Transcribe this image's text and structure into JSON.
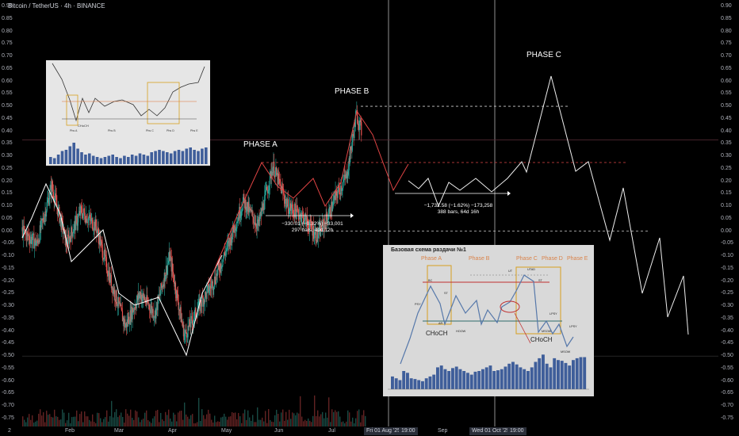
{
  "header": {
    "title": "Bitcoin / TetherUS · 4h · BINANCE"
  },
  "colors": {
    "up": "#26a69a",
    "down": "#ef5350",
    "accent_red": "#e04444",
    "path": "#ffffff",
    "inset_bar": "#3f5e9a"
  },
  "chart_data": {
    "type": "line",
    "title": "Bitcoin / TetherUS · 4h · BINANCE",
    "y_ticks": [
      "0.90",
      "0.85",
      "0.80",
      "0.75",
      "0.70",
      "0.65",
      "0.60",
      "0.55",
      "0.50",
      "0.45",
      "0.40",
      "0.35",
      "0.30",
      "0.25",
      "0.20",
      "0.15",
      "0.10",
      "0.05",
      "0.00",
      "-0.05",
      "-0.10",
      "-0.15",
      "-0.20",
      "-0.25",
      "-0.30",
      "-0.35",
      "-0.40",
      "-0.45",
      "-0.50",
      "-0.55",
      "-0.60",
      "-0.65",
      "-0.70",
      "-0.75"
    ],
    "ylim": [
      -0.78,
      0.91
    ],
    "x_ticks": [
      "2",
      "Feb",
      "Mar",
      "Apr",
      "May",
      "Jun",
      "Jul",
      "Fri 01 Aug '25",
      "19:00",
      "Sep",
      "Wed 01 Oct '25",
      "19:00"
    ],
    "price_path": {
      "x_month": [
        0.0,
        0.3,
        0.6,
        0.9,
        1.2,
        1.5,
        1.8,
        2.1,
        2.4,
        2.7,
        3.0,
        3.3,
        3.6,
        3.9,
        4.2,
        4.5,
        4.8,
        5.1,
        5.4,
        5.7,
        6.0,
        6.2,
        6.4,
        6.6,
        6.8,
        6.9
      ],
      "y": [
        0.0,
        -0.05,
        0.18,
        -0.05,
        0.08,
        0.02,
        -0.2,
        -0.38,
        -0.25,
        -0.33,
        -0.1,
        -0.42,
        -0.3,
        -0.2,
        -0.05,
        0.12,
        0.02,
        0.26,
        0.1,
        0.06,
        -0.02,
        0.05,
        0.15,
        0.22,
        0.47,
        0.4
      ]
    },
    "projection_path": {
      "x_month": [
        7.0,
        7.2,
        7.4,
        7.6,
        7.8,
        8.0,
        8.2,
        8.4,
        8.6,
        8.8,
        9.0,
        9.2,
        9.4,
        9.6,
        9.8,
        10.0,
        10.2,
        10.4,
        10.6,
        10.8,
        11.0,
        11.2,
        11.4
      ],
      "y": [
        0.2,
        0.22,
        0.18,
        0.2,
        0.17,
        0.22,
        0.2,
        0.17,
        0.28,
        0.24,
        0.62,
        0.5,
        0.25,
        0.28,
        0.0,
        0.17,
        -0.28,
        -0.02,
        -0.25,
        -0.15,
        -0.35,
        -0.18,
        -0.4
      ]
    },
    "levels": [
      {
        "name": "phase_b_top",
        "y": 0.5
      },
      {
        "name": "phase_a_top",
        "y": 0.275
      },
      {
        "name": "mid",
        "y": 0.0
      },
      {
        "name": "phase_a_upper",
        "y": 0.365
      },
      {
        "name": "phase_a_lower",
        "y": -0.5
      }
    ]
  },
  "annotations": {
    "phase_a": "PHASE A",
    "phase_b": "PHASE B",
    "phase_c": "PHASE C",
    "measure1_line1": "−330.01 (−0.32%) −33,001",
    "measure1_line2": "297 bars, 49d 12h",
    "measure2_line1": "−1,732.58 (−1.62%) −173,258",
    "measure2_line2": "388 bars, 64d 16h"
  },
  "inset_right": {
    "title": "Базовая схема раздачи №1",
    "phases": [
      "Phase A",
      "Phase B",
      "Phase C",
      "Phase D",
      "Phase E"
    ],
    "choch_left": "CHoCH",
    "choch_right": "CHoCH",
    "labels": {
      "psy": "PSY",
      "bc": "BC",
      "ar": "AR",
      "st": "ST",
      "hoow": "HOOW",
      "ut": "UT",
      "utad": "UTAD",
      "st2": "ST",
      "lpsy": "LPSY",
      "msow": "MSOW",
      "lpsy2": "LPSY",
      "msow2": "MSOW"
    },
    "volume_bars": [
      0.35,
      0.3,
      0.25,
      0.5,
      0.45,
      0.3,
      0.28,
      0.25,
      0.22,
      0.3,
      0.35,
      0.4,
      0.6,
      0.65,
      0.55,
      0.5,
      0.58,
      0.62,
      0.55,
      0.5,
      0.45,
      0.4,
      0.48,
      0.5,
      0.55,
      0.6,
      0.65,
      0.5,
      0.52,
      0.55,
      0.62,
      0.7,
      0.75,
      0.68,
      0.6,
      0.55,
      0.5,
      0.6,
      0.75,
      0.85,
      0.95,
      0.7,
      0.6,
      0.85,
      0.8,
      0.78,
      0.72,
      0.65,
      0.8,
      0.85,
      0.88,
      0.88
    ]
  },
  "inset_left": {
    "choch_label": "CHoCH",
    "phases": [
      "Phs A",
      "Phs B",
      "Phs C",
      "Phs D",
      "Phs E"
    ],
    "volume_bars": [
      0.3,
      0.25,
      0.4,
      0.55,
      0.6,
      0.75,
      0.9,
      0.65,
      0.5,
      0.4,
      0.45,
      0.35,
      0.3,
      0.25,
      0.3,
      0.35,
      0.4,
      0.3,
      0.25,
      0.35,
      0.3,
      0.4,
      0.35,
      0.45,
      0.4,
      0.35,
      0.5,
      0.55,
      0.6,
      0.55,
      0.5,
      0.45,
      0.55,
      0.6,
      0.55,
      0.65,
      0.7,
      0.6,
      0.55,
      0.65,
      0.7
    ]
  }
}
